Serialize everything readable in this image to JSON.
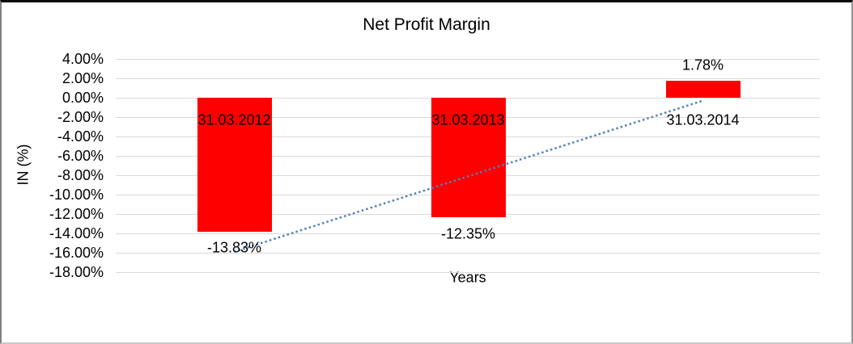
{
  "chart_data": {
    "type": "bar",
    "title": "Net Profit Margin",
    "xlabel": "Years",
    "ylabel": "IN (%)",
    "categories": [
      "31.03.2012",
      "31.03.2013",
      "31.03.2014"
    ],
    "values": [
      -13.83,
      -12.35,
      1.78
    ],
    "value_labels": [
      "-13.83%",
      "-12.35%",
      "1.78%"
    ],
    "ylim": [
      -18,
      4
    ],
    "ytick_step": 2,
    "ytick_labels": [
      "4.00%",
      "2.00%",
      "0.00%",
      "-2.00%",
      "-4.00%",
      "-6.00%",
      "-8.00%",
      "-10.00%",
      "-12.00%",
      "-14.00%",
      "-16.00%",
      "-18.00%"
    ],
    "grid": true,
    "legend": "none",
    "colors": {
      "bar": "#FF0000",
      "gridline": "#D9D9D9",
      "trendline": "#4F81BD",
      "text": "#000000"
    },
    "trendline": {
      "type": "linear",
      "style": "dotted",
      "start_value": -15.9,
      "end_value": -0.3
    }
  }
}
